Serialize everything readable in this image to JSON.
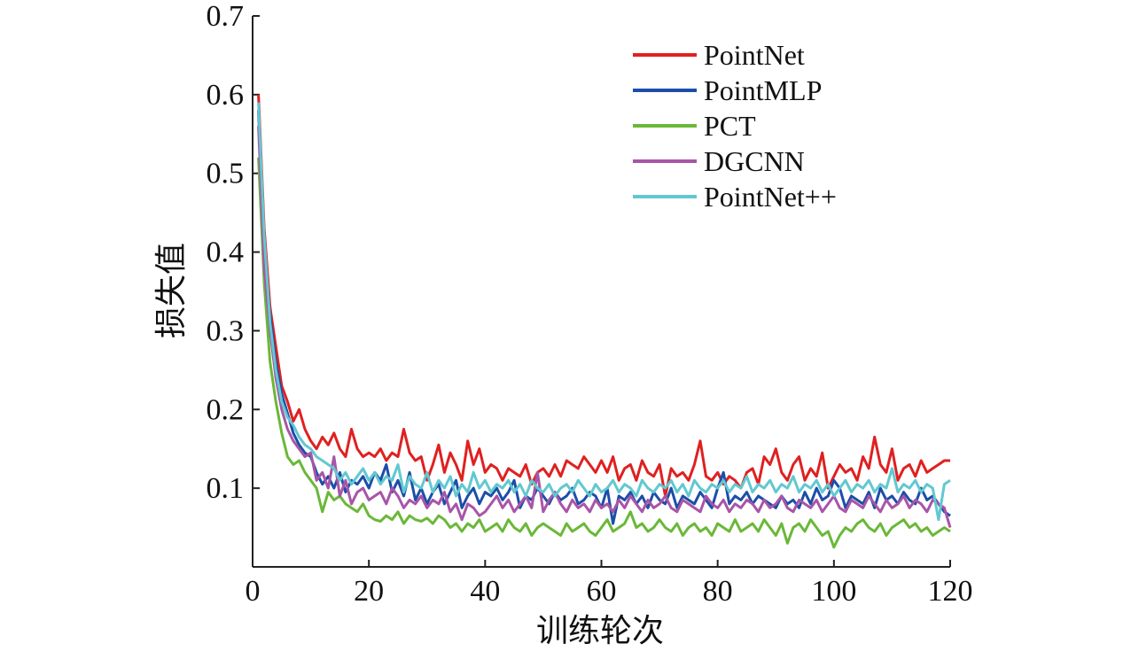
{
  "chart_data": {
    "type": "line",
    "title": "",
    "xlabel": "训练轮次",
    "ylabel": "损失值",
    "xlim": [
      0,
      120
    ],
    "ylim": [
      0,
      0.7
    ],
    "x_ticks": [
      "0",
      "20",
      "40",
      "60",
      "80",
      "100",
      "120"
    ],
    "y_ticks": [
      "0.1",
      "0.2",
      "0.3",
      "0.4",
      "0.5",
      "0.6",
      "0.7"
    ],
    "grid": false,
    "legend_position": "top-right",
    "x": [
      1,
      2,
      3,
      4,
      5,
      6,
      7,
      8,
      9,
      10,
      11,
      12,
      13,
      14,
      15,
      16,
      17,
      18,
      19,
      20,
      21,
      22,
      23,
      24,
      25,
      26,
      27,
      28,
      29,
      30,
      31,
      32,
      33,
      34,
      35,
      36,
      37,
      38,
      39,
      40,
      41,
      42,
      43,
      44,
      45,
      46,
      47,
      48,
      49,
      50,
      51,
      52,
      53,
      54,
      55,
      56,
      57,
      58,
      59,
      60,
      61,
      62,
      63,
      64,
      65,
      66,
      67,
      68,
      69,
      70,
      71,
      72,
      73,
      74,
      75,
      76,
      77,
      78,
      79,
      80,
      81,
      82,
      83,
      84,
      85,
      86,
      87,
      88,
      89,
      90,
      91,
      92,
      93,
      94,
      95,
      96,
      97,
      98,
      99,
      100,
      101,
      102,
      103,
      104,
      105,
      106,
      107,
      108,
      109,
      110,
      111,
      112,
      113,
      114,
      115,
      116,
      117,
      118,
      119,
      120
    ],
    "series": [
      {
        "name": "PointNet",
        "color": "#e02020",
        "values": [
          0.6,
          0.43,
          0.33,
          0.28,
          0.23,
          0.21,
          0.185,
          0.2,
          0.175,
          0.16,
          0.15,
          0.165,
          0.155,
          0.17,
          0.15,
          0.14,
          0.175,
          0.15,
          0.14,
          0.145,
          0.14,
          0.15,
          0.135,
          0.145,
          0.14,
          0.175,
          0.145,
          0.135,
          0.14,
          0.11,
          0.13,
          0.155,
          0.12,
          0.145,
          0.13,
          0.11,
          0.16,
          0.13,
          0.15,
          0.12,
          0.13,
          0.125,
          0.11,
          0.125,
          0.12,
          0.115,
          0.13,
          0.105,
          0.12,
          0.125,
          0.115,
          0.13,
          0.115,
          0.135,
          0.13,
          0.125,
          0.14,
          0.13,
          0.12,
          0.135,
          0.12,
          0.14,
          0.11,
          0.125,
          0.13,
          0.11,
          0.135,
          0.12,
          0.115,
          0.13,
          0.09,
          0.125,
          0.115,
          0.12,
          0.11,
          0.13,
          0.16,
          0.115,
          0.11,
          0.12,
          0.105,
          0.115,
          0.11,
          0.1,
          0.12,
          0.125,
          0.105,
          0.14,
          0.13,
          0.15,
          0.12,
          0.11,
          0.13,
          0.14,
          0.11,
          0.125,
          0.115,
          0.145,
          0.1,
          0.115,
          0.13,
          0.12,
          0.125,
          0.11,
          0.14,
          0.125,
          0.165,
          0.13,
          0.12,
          0.15,
          0.11,
          0.125,
          0.13,
          0.115,
          0.135,
          0.12,
          0.125,
          0.13,
          0.135,
          0.135
        ]
      },
      {
        "name": "PointMLP",
        "color": "#1c4ea8",
        "values": [
          0.58,
          0.4,
          0.32,
          0.26,
          0.22,
          0.195,
          0.17,
          0.155,
          0.145,
          0.14,
          0.12,
          0.105,
          0.115,
          0.1,
          0.12,
          0.095,
          0.11,
          0.105,
          0.115,
          0.1,
          0.12,
          0.11,
          0.13,
          0.095,
          0.11,
          0.09,
          0.12,
          0.085,
          0.1,
          0.08,
          0.095,
          0.105,
          0.08,
          0.095,
          0.11,
          0.075,
          0.09,
          0.1,
          0.08,
          0.095,
          0.09,
          0.1,
          0.085,
          0.095,
          0.11,
          0.075,
          0.09,
          0.085,
          0.1,
          0.09,
          0.08,
          0.095,
          0.085,
          0.09,
          0.1,
          0.08,
          0.085,
          0.095,
          0.09,
          0.075,
          0.1,
          0.055,
          0.09,
          0.085,
          0.095,
          0.08,
          0.09,
          0.075,
          0.095,
          0.085,
          0.08,
          0.1,
          0.075,
          0.09,
          0.085,
          0.08,
          0.095,
          0.085,
          0.075,
          0.1,
          0.12,
          0.08,
          0.09,
          0.085,
          0.095,
          0.08,
          0.09,
          0.085,
          0.08,
          0.075,
          0.09,
          0.08,
          0.085,
          0.075,
          0.095,
          0.08,
          0.1,
          0.085,
          0.09,
          0.11,
          0.1,
          0.075,
          0.09,
          0.085,
          0.08,
          0.095,
          0.075,
          0.1,
          0.085,
          0.09,
          0.08,
          0.095,
          0.085,
          0.08,
          0.1,
          0.085,
          0.09,
          0.08,
          0.07,
          0.065
        ]
      },
      {
        "name": "PCT",
        "color": "#6ab838",
        "values": [
          0.52,
          0.36,
          0.26,
          0.21,
          0.17,
          0.14,
          0.13,
          0.135,
          0.12,
          0.11,
          0.1,
          0.07,
          0.095,
          0.085,
          0.09,
          0.08,
          0.075,
          0.07,
          0.08,
          0.065,
          0.06,
          0.058,
          0.065,
          0.06,
          0.07,
          0.055,
          0.065,
          0.06,
          0.058,
          0.062,
          0.055,
          0.065,
          0.06,
          0.05,
          0.055,
          0.045,
          0.055,
          0.05,
          0.06,
          0.045,
          0.05,
          0.055,
          0.045,
          0.06,
          0.05,
          0.045,
          0.055,
          0.04,
          0.05,
          0.055,
          0.05,
          0.045,
          0.04,
          0.055,
          0.045,
          0.05,
          0.055,
          0.045,
          0.04,
          0.05,
          0.06,
          0.045,
          0.05,
          0.055,
          0.07,
          0.05,
          0.055,
          0.045,
          0.05,
          0.06,
          0.05,
          0.045,
          0.055,
          0.04,
          0.05,
          0.055,
          0.045,
          0.05,
          0.04,
          0.055,
          0.05,
          0.045,
          0.06,
          0.045,
          0.05,
          0.055,
          0.045,
          0.06,
          0.05,
          0.04,
          0.055,
          0.03,
          0.05,
          0.055,
          0.045,
          0.06,
          0.05,
          0.04,
          0.045,
          0.025,
          0.04,
          0.05,
          0.045,
          0.055,
          0.06,
          0.05,
          0.045,
          0.055,
          0.04,
          0.05,
          0.055,
          0.06,
          0.05,
          0.055,
          0.045,
          0.05,
          0.04,
          0.045,
          0.05,
          0.045
        ]
      },
      {
        "name": "DGCNN",
        "color": "#a855a8",
        "values": [
          0.56,
          0.38,
          0.3,
          0.24,
          0.2,
          0.175,
          0.16,
          0.15,
          0.14,
          0.145,
          0.11,
          0.12,
          0.1,
          0.14,
          0.09,
          0.11,
          0.08,
          0.095,
          0.1,
          0.085,
          0.09,
          0.095,
          0.08,
          0.1,
          0.09,
          0.075,
          0.085,
          0.08,
          0.09,
          0.075,
          0.085,
          0.08,
          0.095,
          0.07,
          0.08,
          0.06,
          0.08,
          0.075,
          0.065,
          0.07,
          0.08,
          0.09,
          0.075,
          0.085,
          0.07,
          0.08,
          0.09,
          0.075,
          0.12,
          0.07,
          0.085,
          0.095,
          0.08,
          0.07,
          0.085,
          0.075,
          0.08,
          0.07,
          0.085,
          0.075,
          0.08,
          0.07,
          0.085,
          0.075,
          0.09,
          0.08,
          0.07,
          0.085,
          0.075,
          0.08,
          0.09,
          0.075,
          0.07,
          0.085,
          0.08,
          0.075,
          0.07,
          0.09,
          0.08,
          0.075,
          0.085,
          0.07,
          0.08,
          0.075,
          0.085,
          0.08,
          0.07,
          0.085,
          0.075,
          0.08,
          0.09,
          0.075,
          0.07,
          0.085,
          0.08,
          0.075,
          0.085,
          0.07,
          0.08,
          0.09,
          0.075,
          0.07,
          0.085,
          0.08,
          0.075,
          0.09,
          0.08,
          0.07,
          0.085,
          0.075,
          0.08,
          0.09,
          0.075,
          0.085,
          0.08,
          0.07,
          0.085,
          0.08,
          0.075,
          0.05
        ]
      },
      {
        "name": "PointNet++",
        "color": "#62c8d0",
        "values": [
          0.59,
          0.42,
          0.31,
          0.25,
          0.21,
          0.19,
          0.18,
          0.165,
          0.155,
          0.15,
          0.14,
          0.135,
          0.13,
          0.125,
          0.11,
          0.12,
          0.105,
          0.115,
          0.125,
          0.11,
          0.12,
          0.105,
          0.115,
          0.11,
          0.13,
          0.095,
          0.115,
          0.105,
          0.1,
          0.12,
          0.095,
          0.11,
          0.1,
          0.115,
          0.09,
          0.105,
          0.095,
          0.12,
          0.1,
          0.11,
          0.095,
          0.105,
          0.1,
          0.11,
          0.095,
          0.105,
          0.09,
          0.11,
          0.1,
          0.095,
          0.105,
          0.09,
          0.1,
          0.105,
          0.095,
          0.11,
          0.1,
          0.09,
          0.105,
          0.095,
          0.1,
          0.11,
          0.095,
          0.105,
          0.1,
          0.09,
          0.11,
          0.1,
          0.095,
          0.105,
          0.1,
          0.11,
          0.095,
          0.105,
          0.09,
          0.11,
          0.1,
          0.095,
          0.105,
          0.1,
          0.11,
          0.095,
          0.105,
          0.1,
          0.115,
          0.095,
          0.105,
          0.1,
          0.11,
          0.095,
          0.105,
          0.1,
          0.115,
          0.095,
          0.105,
          0.1,
          0.11,
          0.095,
          0.105,
          0.09,
          0.1,
          0.11,
          0.095,
          0.105,
          0.1,
          0.11,
          0.095,
          0.105,
          0.1,
          0.125,
          0.095,
          0.105,
          0.1,
          0.11,
          0.095,
          0.105,
          0.1,
          0.06,
          0.105,
          0.11
        ]
      }
    ]
  }
}
